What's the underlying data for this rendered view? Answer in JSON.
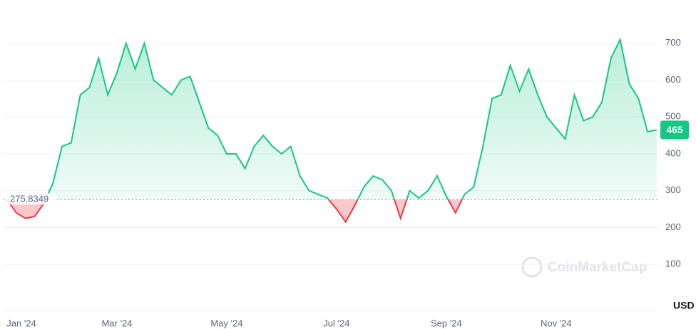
{
  "chart_data": {
    "type": "line",
    "categories": [
      "Jan '24",
      null,
      null,
      null,
      null,
      null,
      null,
      null,
      null,
      null,
      null,
      null,
      "Mar '24",
      null,
      null,
      null,
      null,
      null,
      null,
      null,
      null,
      null,
      null,
      null,
      "May '24",
      null,
      null,
      null,
      null,
      null,
      null,
      null,
      null,
      null,
      null,
      null,
      "Jul '24",
      null,
      null,
      null,
      null,
      null,
      null,
      null,
      null,
      null,
      null,
      null,
      "Sep '24",
      null,
      null,
      null,
      null,
      null,
      null,
      null,
      null,
      null,
      null,
      null,
      "Nov '24",
      null,
      null,
      null,
      null,
      null,
      null,
      null,
      null,
      null,
      null,
      null
    ],
    "values": [
      275,
      240,
      225,
      230,
      265,
      320,
      420,
      430,
      560,
      580,
      660,
      560,
      620,
      700,
      630,
      700,
      600,
      580,
      560,
      600,
      610,
      540,
      470,
      450,
      400,
      400,
      360,
      420,
      450,
      420,
      400,
      420,
      340,
      300,
      290,
      280,
      250,
      215,
      260,
      310,
      340,
      330,
      300,
      225,
      300,
      280,
      300,
      340,
      285,
      240,
      290,
      310,
      420,
      550,
      560,
      640,
      570,
      630,
      560,
      500,
      470,
      440,
      560,
      490,
      500,
      540,
      660,
      710,
      590,
      550,
      460,
      465
    ],
    "baseline": 275.8349,
    "ylim": [
      0,
      800
    ],
    "yticks": [
      100,
      200,
      300,
      400,
      500,
      600,
      700
    ],
    "currency": "USD",
    "watermark": "CoinMarketCap",
    "up_color": "#16c784",
    "down_color": "#ea3943",
    "grid": true
  }
}
